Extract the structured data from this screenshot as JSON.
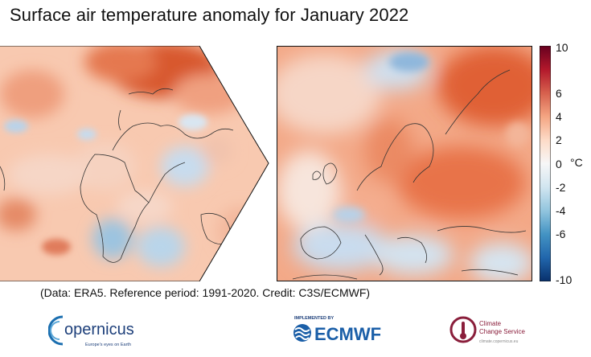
{
  "title": "Surface air temperature anomaly for January 2022",
  "caption": "(Data: ERA5.  Reference period: 1991-2020.  Credit: C3S/ECMWF)",
  "colorbar": {
    "unit": "°C",
    "range": [
      -10,
      10
    ],
    "ticks": [
      "10",
      "6",
      "4",
      "2",
      "0",
      "-2",
      "-4",
      "-6",
      "-10"
    ],
    "colors": [
      "#08306b",
      "#2166ac",
      "#4393c3",
      "#92c5de",
      "#d1e5f0",
      "#f7f7f7",
      "#fddbc7",
      "#f4a582",
      "#d6604d",
      "#b2182b",
      "#67001f"
    ]
  },
  "logos": {
    "copernicus": {
      "name": "opernicus",
      "tagline": "Europe's eyes on Earth"
    },
    "ecmwf": {
      "top": "IMPLEMENTED BY",
      "name": "ECMWF"
    },
    "c3s": {
      "line1": "Climate",
      "line2": "Change Service",
      "tagline": "climate.copernicus.eu"
    }
  }
}
